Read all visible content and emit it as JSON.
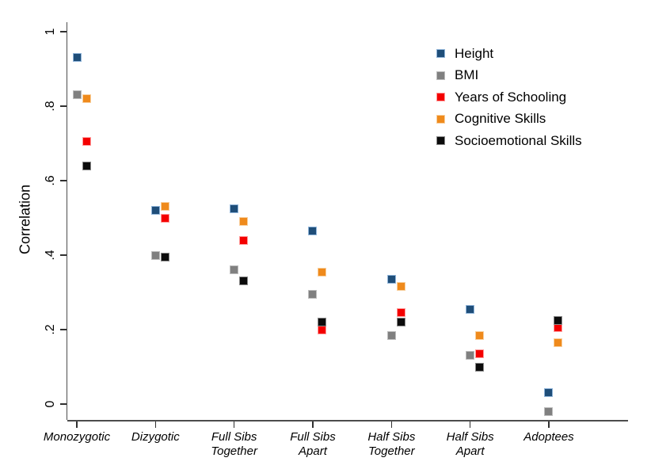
{
  "styles": {
    "background": "#ffffff",
    "axis_color": "#4d4d4d",
    "text_color": "#000000"
  },
  "chart_data": {
    "type": "scatter",
    "title": "",
    "xlabel": "",
    "ylabel": "Correlation",
    "ylim": [
      0,
      1
    ],
    "grid": false,
    "legend_position": "top-right",
    "yticks": [
      {
        "value": 0,
        "label": "0"
      },
      {
        "value": 0.2,
        "label": ".2"
      },
      {
        "value": 0.4,
        "label": ".4"
      },
      {
        "value": 0.6,
        "label": ".6"
      },
      {
        "value": 0.8,
        "label": ".8"
      },
      {
        "value": 1,
        "label": "1"
      }
    ],
    "categories": [
      {
        "id": "monozygotic",
        "lines": [
          "Monozygotic"
        ]
      },
      {
        "id": "dizygotic",
        "lines": [
          "Dizygotic"
        ]
      },
      {
        "id": "full-sibs-together",
        "lines": [
          "Full Sibs",
          "Together"
        ]
      },
      {
        "id": "full-sibs-apart",
        "lines": [
          "Full Sibs",
          "Apart"
        ]
      },
      {
        "id": "half-sibs-together",
        "lines": [
          "Half Sibs",
          "Together"
        ]
      },
      {
        "id": "half-sibs-apart",
        "lines": [
          "Half Sibs",
          "Apart"
        ]
      },
      {
        "id": "adoptees",
        "lines": [
          "Adoptees"
        ]
      }
    ],
    "series": [
      {
        "id": "height",
        "name": "Height",
        "color": "#1f4e79",
        "border_color": "#8fb4d9",
        "x_offset": 0,
        "values": [
          0.93,
          0.52,
          0.525,
          0.465,
          0.335,
          0.255,
          0.03
        ]
      },
      {
        "id": "bmi",
        "name": "BMI",
        "color": "#808080",
        "border_color": "#bdbdbd",
        "x_offset": 0,
        "values": [
          0.83,
          0.4,
          0.36,
          0.295,
          0.185,
          0.13,
          -0.02
        ]
      },
      {
        "id": "years-of-schooling",
        "name": "Years of Schooling",
        "color": "#f40000",
        "border_color": "#ff9c9c",
        "x_offset": 12,
        "values": [
          0.705,
          0.5,
          0.44,
          0.2,
          0.245,
          0.135,
          0.205
        ]
      },
      {
        "id": "cognitive-skills",
        "name": "Cognitive Skills",
        "color": "#ef8a1c",
        "border_color": "#f8cf9d",
        "x_offset": 12,
        "values": [
          0.82,
          0.53,
          0.49,
          0.355,
          0.315,
          0.185,
          0.165
        ]
      },
      {
        "id": "socioemotional-skills",
        "name": "Socioemotional Skills",
        "color": "#0c0c0c",
        "border_color": "#8a8a8a",
        "x_offset": 12,
        "values": [
          0.64,
          0.395,
          0.33,
          0.22,
          0.22,
          0.1,
          0.225
        ]
      }
    ]
  }
}
